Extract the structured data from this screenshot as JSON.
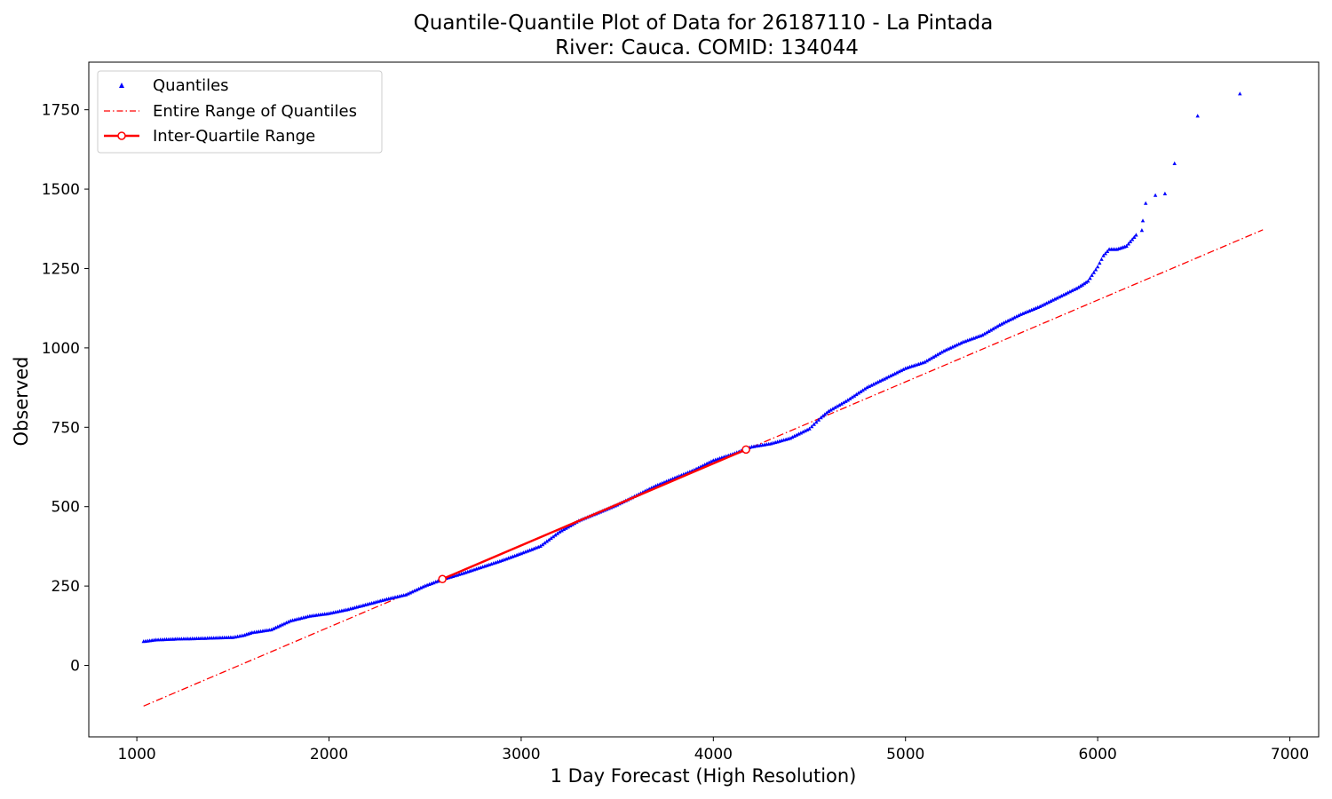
{
  "chart_data": {
    "type": "scatter",
    "title": "Quantile-Quantile Plot of Data for 26187110 - La Pintada",
    "subtitle": "River: Cauca. COMID: 134044",
    "xlabel": "1 Day Forecast (High Resolution)",
    "ylabel": "Observed",
    "xlim": [
      750,
      7150
    ],
    "ylim": [
      -225,
      1900
    ],
    "x_ticks": [
      1000,
      2000,
      3000,
      4000,
      5000,
      6000,
      7000
    ],
    "y_ticks": [
      0,
      250,
      500,
      750,
      1000,
      1250,
      1500,
      1750
    ],
    "grid": false,
    "legend": {
      "position": "top-left",
      "entries": [
        "Quantiles",
        "Entire Range of Quantiles",
        "Inter-Quartile Range"
      ]
    },
    "series": [
      {
        "name": "Quantiles",
        "style": "marker",
        "color": "#0000ff",
        "anchors": [
          [
            1035,
            75
          ],
          [
            1100,
            80
          ],
          [
            1210,
            83
          ],
          [
            1300,
            84
          ],
          [
            1400,
            86
          ],
          [
            1500,
            88
          ],
          [
            1560,
            95
          ],
          [
            1600,
            103
          ],
          [
            1700,
            112
          ],
          [
            1800,
            140
          ],
          [
            1900,
            155
          ],
          [
            2000,
            163
          ],
          [
            2100,
            176
          ],
          [
            2200,
            192
          ],
          [
            2300,
            208
          ],
          [
            2400,
            222
          ],
          [
            2500,
            250
          ],
          [
            2600,
            272
          ],
          [
            2700,
            290
          ],
          [
            2800,
            310
          ],
          [
            2900,
            330
          ],
          [
            3000,
            352
          ],
          [
            3100,
            375
          ],
          [
            3200,
            420
          ],
          [
            3300,
            455
          ],
          [
            3400,
            480
          ],
          [
            3500,
            505
          ],
          [
            3600,
            535
          ],
          [
            3700,
            565
          ],
          [
            3800,
            590
          ],
          [
            3900,
            615
          ],
          [
            4000,
            645
          ],
          [
            4100,
            665
          ],
          [
            4200,
            688
          ],
          [
            4300,
            698
          ],
          [
            4400,
            715
          ],
          [
            4500,
            745
          ],
          [
            4560,
            780
          ],
          [
            4600,
            800
          ],
          [
            4700,
            835
          ],
          [
            4800,
            875
          ],
          [
            4900,
            905
          ],
          [
            5000,
            935
          ],
          [
            5100,
            955
          ],
          [
            5200,
            990
          ],
          [
            5300,
            1018
          ],
          [
            5400,
            1040
          ],
          [
            5500,
            1075
          ],
          [
            5600,
            1105
          ],
          [
            5700,
            1130
          ],
          [
            5800,
            1160
          ],
          [
            5900,
            1190
          ],
          [
            5950,
            1210
          ],
          [
            6000,
            1255
          ],
          [
            6030,
            1290
          ],
          [
            6060,
            1310
          ],
          [
            6100,
            1310
          ],
          [
            6150,
            1320
          ],
          [
            6200,
            1355
          ],
          [
            6230,
            1370
          ],
          [
            6235,
            1400
          ],
          [
            6250,
            1455
          ],
          [
            6300,
            1480
          ],
          [
            6350,
            1485
          ],
          [
            6400,
            1580
          ],
          [
            6520,
            1730
          ],
          [
            6740,
            1800
          ]
        ],
        "point_count": 520
      },
      {
        "name": "Entire Range of Quantiles",
        "style": "dash-dot line",
        "color": "#ff0000",
        "x": [
          1035,
          6860
        ],
        "y": [
          -128,
          1372
        ]
      },
      {
        "name": "Inter-Quartile Range",
        "style": "solid line with circle markers",
        "color": "#ff0000",
        "x": [
          2590,
          4170
        ],
        "y": [
          272,
          680
        ]
      }
    ]
  }
}
